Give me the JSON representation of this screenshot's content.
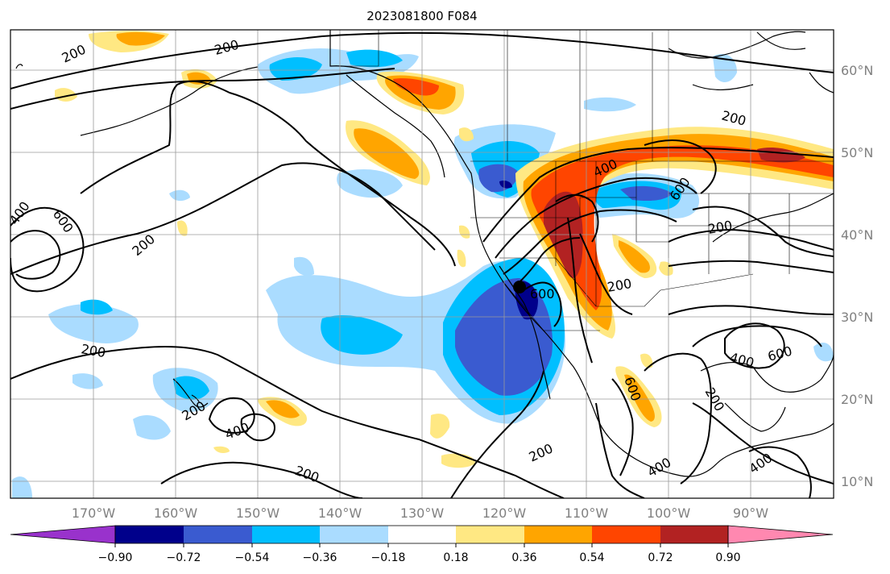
{
  "title": "2023081800 F084",
  "map": {
    "lon_ticks": [
      "170°W",
      "160°W",
      "150°W",
      "140°W",
      "130°W",
      "120°W",
      "110°W",
      "100°W",
      "90°W"
    ],
    "lat_ticks": [
      "60°N",
      "50°N",
      "40°N",
      "30°N",
      "20°N",
      "10°N"
    ],
    "extent": {
      "lon": [
        -180,
        -80
      ],
      "lat": [
        8,
        65
      ]
    },
    "grid": true,
    "contour_labels": [
      "200",
      "200",
      "200",
      "200",
      "200",
      "200",
      "200",
      "200",
      "200",
      "400",
      "400",
      "400",
      "400",
      "400",
      "400",
      "600",
      "600",
      "600",
      "600",
      "600"
    ],
    "marker": "storm-center"
  },
  "colorbar": {
    "labels": [
      "−0.90",
      "−0.72",
      "−0.54",
      "−0.36",
      "−0.18",
      "0.18",
      "0.36",
      "0.54",
      "0.72",
      "0.90"
    ],
    "colors": [
      "#9932cc",
      "#00008b",
      "#3a5bd0",
      "#00bfff",
      "#aadcff",
      "#ffffff",
      "#ffe883",
      "#ffa500",
      "#ff4500",
      "#b22222",
      "#ff88b0"
    ]
  }
}
